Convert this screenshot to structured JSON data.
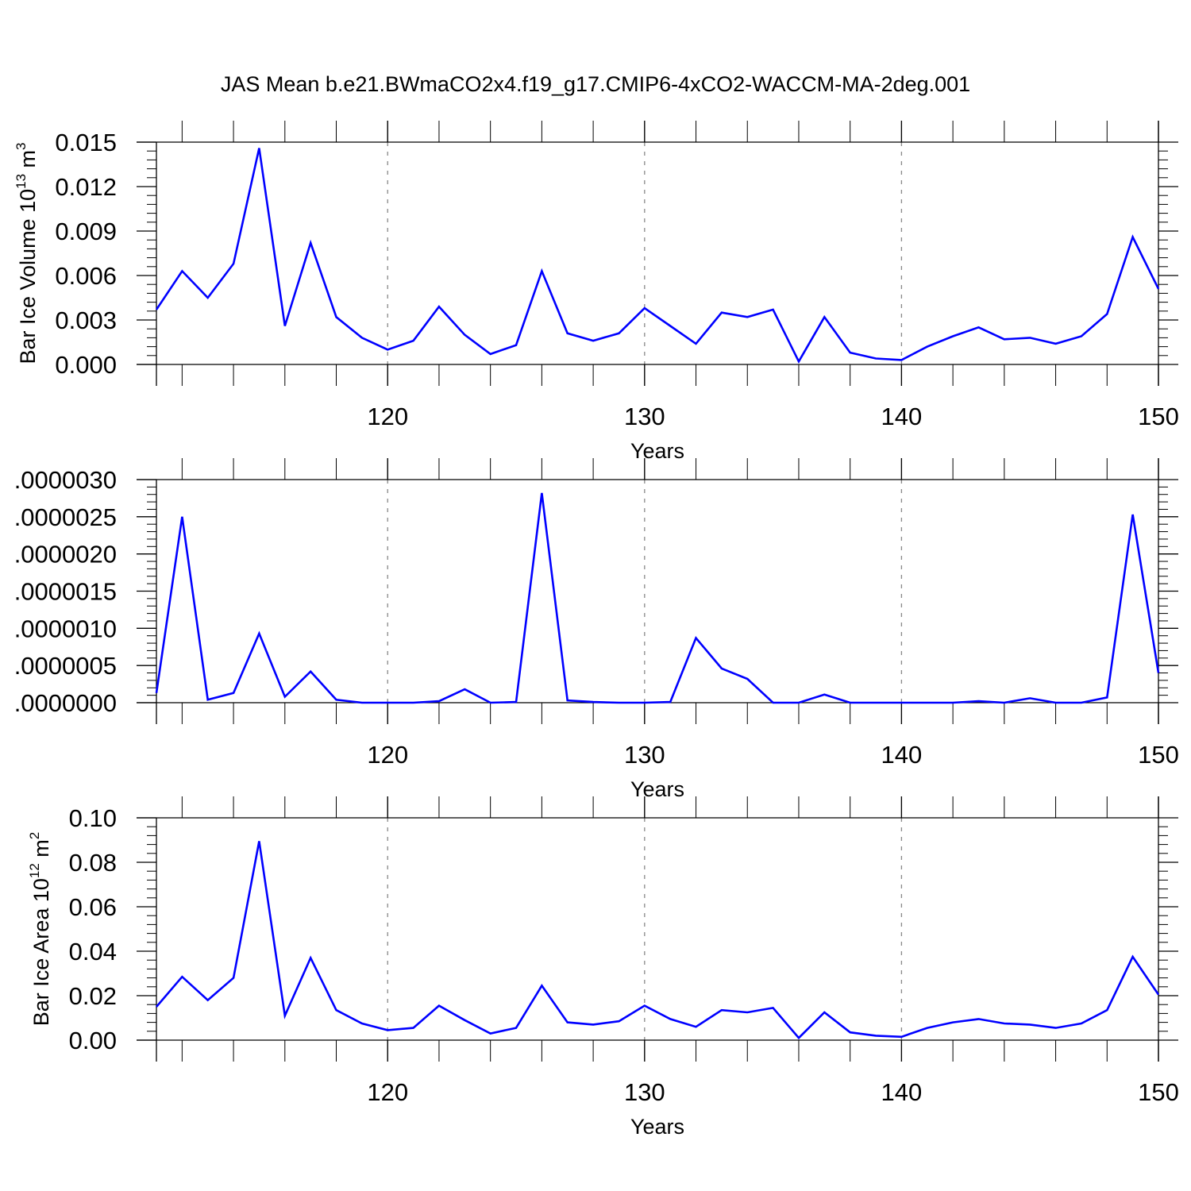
{
  "title": "JAS Mean b.e21.BWmaCO2x4.f19_g17.CMIP6-4xCO2-WACCM-MA-2deg.001",
  "colors": {
    "line": "#0000ff",
    "axis": "#000000",
    "grid": "#888888"
  },
  "chart_data": [
    {
      "type": "line",
      "xlabel": "Years",
      "ylabel": "Bar Ice Volume 10",
      "ylabel_sup1": "13",
      "ylabel_mid": " m",
      "ylabel_sup2": "3",
      "xlim": [
        111,
        150
      ],
      "ylim": [
        0,
        0.015
      ],
      "xticks": [
        120,
        130,
        140,
        150
      ],
      "xtick_labels": [
        "120",
        "130",
        "140",
        "150"
      ],
      "yticks": [
        0,
        0.003,
        0.006,
        0.009,
        0.012,
        0.015
      ],
      "ytick_labels": [
        "0.000",
        "0.003",
        "0.006",
        "0.009",
        "0.012",
        "0.015"
      ],
      "grid": "dashed vertical at major x ticks",
      "x": [
        111,
        112,
        113,
        114,
        115,
        116,
        117,
        118,
        119,
        120,
        121,
        122,
        123,
        124,
        125,
        126,
        127,
        128,
        129,
        130,
        131,
        132,
        133,
        134,
        135,
        136,
        137,
        138,
        139,
        140,
        141,
        142,
        143,
        144,
        145,
        146,
        147,
        148,
        149,
        150
      ],
      "values": [
        0.0037,
        0.0063,
        0.0045,
        0.0068,
        0.0146,
        0.0026,
        0.0082,
        0.0032,
        0.0018,
        0.001,
        0.0016,
        0.0039,
        0.002,
        0.0007,
        0.0013,
        0.0063,
        0.0021,
        0.0016,
        0.0021,
        0.0038,
        0.0026,
        0.0014,
        0.0035,
        0.0032,
        0.0037,
        0.0002,
        0.0032,
        0.0008,
        0.0004,
        0.0003,
        0.0012,
        0.0019,
        0.0025,
        0.0017,
        0.0018,
        0.0014,
        0.0019,
        0.0034,
        0.0086,
        0.0051
      ]
    },
    {
      "type": "line",
      "xlabel": "Years",
      "ylabel": "",
      "xlim": [
        111,
        150
      ],
      "ylim": [
        0,
        3e-06
      ],
      "xticks": [
        120,
        130,
        140,
        150
      ],
      "xtick_labels": [
        "120",
        "130",
        "140",
        "150"
      ],
      "yticks": [
        0,
        5e-07,
        1e-06,
        1.5e-06,
        2e-06,
        2.5e-06,
        3e-06
      ],
      "ytick_labels": [
        ".0000000",
        ".0000005",
        ".0000010",
        ".0000015",
        ".0000020",
        ".0000025",
        ".0000030"
      ],
      "grid": "dashed vertical at major x ticks",
      "x": [
        111,
        112,
        113,
        114,
        115,
        116,
        117,
        118,
        119,
        120,
        121,
        122,
        123,
        124,
        125,
        126,
        127,
        128,
        129,
        130,
        131,
        132,
        133,
        134,
        135,
        136,
        137,
        138,
        139,
        140,
        141,
        142,
        143,
        144,
        145,
        146,
        147,
        148,
        149,
        150
      ],
      "values": [
        1.3e-07,
        2.5e-06,
        4e-08,
        1.3e-07,
        9.3e-07,
        8e-08,
        4.2e-07,
        4e-08,
        0.0,
        0.0,
        0.0,
        2e-08,
        1.8e-07,
        0.0,
        1e-08,
        2.82e-06,
        3e-08,
        1e-08,
        0.0,
        0.0,
        1e-08,
        8.7e-07,
        4.6e-07,
        3.2e-07,
        0.0,
        0.0,
        1.1e-07,
        0.0,
        0.0,
        0.0,
        0.0,
        0.0,
        2e-08,
        0.0,
        6e-08,
        0.0,
        0.0,
        7e-08,
        2.53e-06,
        4e-07
      ]
    },
    {
      "type": "line",
      "xlabel": "Years",
      "ylabel": "Bar Ice Area 10",
      "ylabel_sup1": "12",
      "ylabel_mid": " m",
      "ylabel_sup2": "2",
      "xlim": [
        111,
        150
      ],
      "ylim": [
        0,
        0.1
      ],
      "xticks": [
        120,
        130,
        140,
        150
      ],
      "xtick_labels": [
        "120",
        "130",
        "140",
        "150"
      ],
      "yticks": [
        0,
        0.02,
        0.04,
        0.06,
        0.08,
        0.1
      ],
      "ytick_labels": [
        "0.00",
        "0.02",
        "0.04",
        "0.06",
        "0.08",
        "0.10"
      ],
      "grid": "dashed vertical at major x ticks",
      "x": [
        111,
        112,
        113,
        114,
        115,
        116,
        117,
        118,
        119,
        120,
        121,
        122,
        123,
        124,
        125,
        126,
        127,
        128,
        129,
        130,
        131,
        132,
        133,
        134,
        135,
        136,
        137,
        138,
        139,
        140,
        141,
        142,
        143,
        144,
        145,
        146,
        147,
        148,
        149,
        150
      ],
      "values": [
        0.015,
        0.0285,
        0.018,
        0.028,
        0.0895,
        0.011,
        0.037,
        0.0135,
        0.0075,
        0.0045,
        0.0055,
        0.0155,
        0.009,
        0.003,
        0.0055,
        0.0245,
        0.008,
        0.007,
        0.0085,
        0.0155,
        0.0095,
        0.006,
        0.0135,
        0.0125,
        0.0145,
        0.001,
        0.0125,
        0.0035,
        0.002,
        0.0015,
        0.0055,
        0.008,
        0.0095,
        0.0075,
        0.007,
        0.0055,
        0.0075,
        0.0135,
        0.0375,
        0.0205
      ]
    }
  ]
}
